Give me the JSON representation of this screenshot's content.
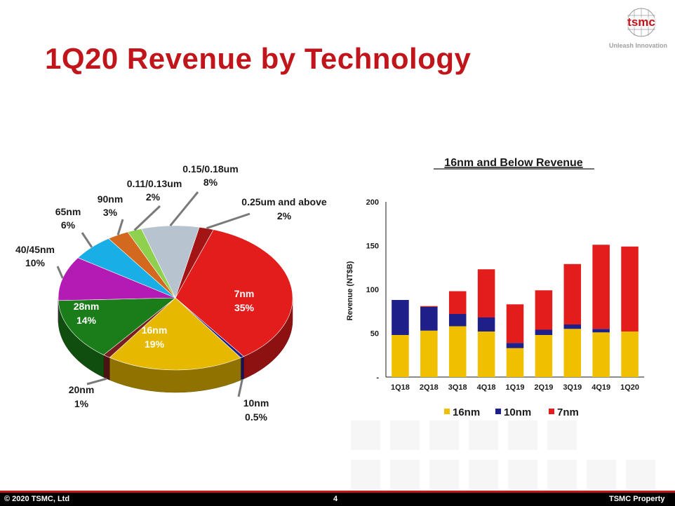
{
  "slide": {
    "title": "1Q20 Revenue by Technology",
    "logo_text": "tsmc",
    "tagline": "Unleash Innovation",
    "footer": {
      "copyright": "© 2020 TSMC, Ltd",
      "page_number": "4",
      "property": "TSMC Property"
    }
  },
  "chart_data": [
    {
      "type": "pie",
      "title": "",
      "slices": [
        {
          "name": "7nm",
          "label": "7nm",
          "pct_label": "35%",
          "value": 35,
          "color": "#e31c1c"
        },
        {
          "name": "10nm",
          "label": "10nm",
          "pct_label": "0.5%",
          "value": 0.5,
          "color": "#1f1f8a"
        },
        {
          "name": "16nm",
          "label": "16nm",
          "pct_label": "19%",
          "value": 19,
          "color": "#e6b800"
        },
        {
          "name": "20nm",
          "label": "20nm",
          "pct_label": "1%",
          "value": 1,
          "color": "#7a1f1f"
        },
        {
          "name": "28nm",
          "label": "28nm",
          "pct_label": "14%",
          "value": 14,
          "color": "#1a7d1a"
        },
        {
          "name": "40/45nm",
          "label": "40/45nm",
          "pct_label": "10%",
          "value": 10,
          "color": "#b41ab4"
        },
        {
          "name": "65nm",
          "label": "65nm",
          "pct_label": "6%",
          "value": 6,
          "color": "#19aee6"
        },
        {
          "name": "90nm",
          "label": "90nm",
          "pct_label": "3%",
          "value": 3,
          "color": "#d2691e"
        },
        {
          "name": "0.11/0.13um",
          "label": "0.11/0.13um",
          "pct_label": "2%",
          "value": 2,
          "color": "#8fd14f"
        },
        {
          "name": "0.15/0.18um",
          "label": "0.15/0.18um",
          "pct_label": "8%",
          "value": 8,
          "color": "#b7c3cf"
        },
        {
          "name": "0.25um and above",
          "label": "0.25um and above",
          "pct_label": "2%",
          "value": 2,
          "color": "#a31515"
        }
      ]
    },
    {
      "type": "bar",
      "stacked": true,
      "title": "16nm and Below Revenue",
      "ylabel": "Revenue (NT$B)",
      "xlabel": "",
      "ylim": [
        0,
        200
      ],
      "yticks": [
        {
          "value": 0,
          "label": "-"
        },
        {
          "value": 50,
          "label": "50"
        },
        {
          "value": 100,
          "label": "100"
        },
        {
          "value": 150,
          "label": "150"
        },
        {
          "value": 200,
          "label": "200"
        }
      ],
      "categories": [
        "1Q18",
        "2Q18",
        "3Q18",
        "4Q18",
        "1Q19",
        "2Q19",
        "3Q19",
        "4Q19",
        "1Q20"
      ],
      "series": [
        {
          "name": "16nm",
          "color": "#f0c000",
          "values": [
            48,
            53,
            58,
            52,
            33,
            48,
            55,
            51,
            52
          ]
        },
        {
          "name": "10nm",
          "color": "#1f1f8a",
          "values": [
            40,
            27,
            14,
            16,
            6,
            6,
            5,
            4,
            0
          ]
        },
        {
          "name": "7nm",
          "color": "#e31c1c",
          "values": [
            0,
            1,
            26,
            55,
            44,
            45,
            69,
            96,
            97
          ]
        }
      ],
      "legend_position": "bottom"
    }
  ]
}
